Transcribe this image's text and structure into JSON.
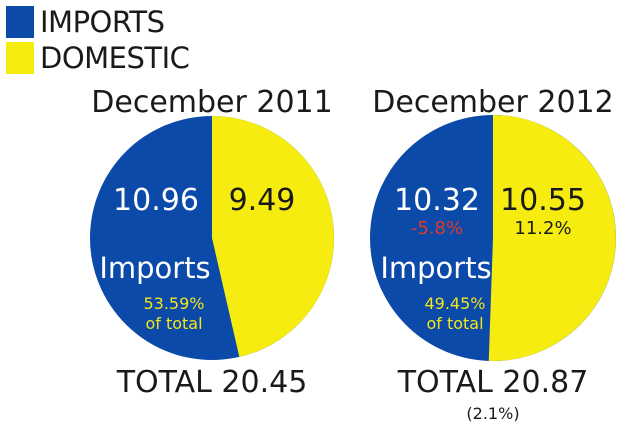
{
  "colors": {
    "imports": "#0b4aa8",
    "domestic": "#f7ec10",
    "negative": "#e03a2a",
    "import_note": "#f4e51c"
  },
  "legend": [
    {
      "label": "IMPORTS",
      "color": "#0b4aa8"
    },
    {
      "label": "DOMESTIC",
      "color": "#f7ec10"
    }
  ],
  "chart_data": [
    {
      "type": "pie",
      "title": "December 2011",
      "slices": [
        {
          "name": "IMPORTS",
          "value": 10.96,
          "percent": 53.59
        },
        {
          "name": "DOMESTIC",
          "value": 9.49,
          "percent": 46.41
        }
      ],
      "labels": {
        "imports_value": "10.96",
        "imports_change": "",
        "domestic_value": "9.49",
        "domestic_change": "",
        "imports_word": "Imports",
        "imports_share": "53.59%",
        "of_total": "of total"
      },
      "total_label": "TOTAL 20.45",
      "total_change": ""
    },
    {
      "type": "pie",
      "title": "December 2012",
      "slices": [
        {
          "name": "IMPORTS",
          "value": 10.32,
          "percent": 49.45
        },
        {
          "name": "DOMESTIC",
          "value": 10.55,
          "percent": 50.55
        }
      ],
      "labels": {
        "imports_value": "10.32",
        "imports_change": "-5.8%",
        "domestic_value": "10.55",
        "domestic_change": "11.2%",
        "imports_word": "Imports",
        "imports_share": "49.45%",
        "of_total": "of total"
      },
      "total_label": "TOTAL 20.87",
      "total_change": "(2.1%)"
    }
  ]
}
